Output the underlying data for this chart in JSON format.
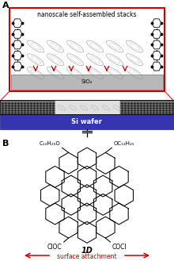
{
  "title_A": "A",
  "title_B": "B",
  "panel_A_text": "nanoscale self-assembled stacks",
  "sio2_label": "SiO₂",
  "si_wafer_label": "Si wafer",
  "molecule_label": "1D",
  "top_left_label": "C₁₂H₂₅O",
  "top_right_label": "OC₁₂H₂₅",
  "bot_left_label": "ClOC",
  "bot_right_label": "COCl",
  "surface_attachment": "surface attachment",
  "bg_color": "#ffffff",
  "red_box_color": "#cc0000",
  "sio2_color": "#b8b8b8",
  "swcnt_dark": "#505050",
  "si_wafer_color": "#3535b0",
  "arrow_color": "#cc0000",
  "swcnt_hatch_color": "#606060"
}
